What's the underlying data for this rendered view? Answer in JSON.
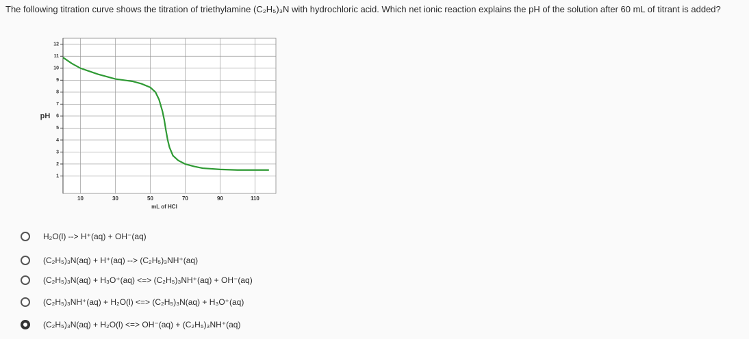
{
  "question": "The following titration curve shows the titration of triethylamine (C₂H₅)₃N with hydrochloric acid. Which net ionic reaction explains the pH of the solution after 60 mL of titrant is added?",
  "chart_data": {
    "type": "line",
    "xlabel": "mL of HCl",
    "ylabel": "pH",
    "x": [
      0,
      5,
      10,
      20,
      30,
      40,
      45,
      50,
      53,
      55,
      57,
      58,
      59,
      60,
      61,
      63,
      66,
      70,
      75,
      80,
      90,
      100,
      110,
      118
    ],
    "values": [
      10.9,
      10.4,
      10.0,
      9.5,
      9.1,
      8.9,
      8.7,
      8.4,
      8.0,
      7.4,
      6.4,
      5.7,
      4.8,
      4.0,
      3.4,
      2.7,
      2.3,
      2.0,
      1.8,
      1.65,
      1.55,
      1.5,
      1.5,
      1.5
    ],
    "color": "#2f9a34",
    "xlim": [
      0,
      122
    ],
    "ylim": [
      0,
      12.5
    ],
    "xticks": [
      10,
      30,
      50,
      70,
      90,
      110
    ],
    "yticks": [
      1,
      2,
      3,
      4,
      5,
      6,
      7,
      8,
      9,
      10,
      11,
      12
    ],
    "grid": true
  },
  "options": [
    "H₂O(l) --> H⁺(aq) + OH⁻(aq)",
    "(C₂H₅)₃N(aq) + H⁺(aq) --> (C₂H₅)₃NH⁺(aq)",
    "(C₂H₅)₃N(aq) + H₃O⁺(aq) <=> (C₂H₅)₃NH⁺(aq) + OH⁻(aq)",
    "(C₂H₅)₃NH⁺(aq) + H₂O(l) <=> (C₂H₅)₃N(aq) + H₃O⁺(aq)",
    "(C₂H₅)₃N(aq) + H₂O(l) <=> OH⁻(aq) + (C₂H₅)₃NH⁺(aq)"
  ],
  "selected": 4
}
